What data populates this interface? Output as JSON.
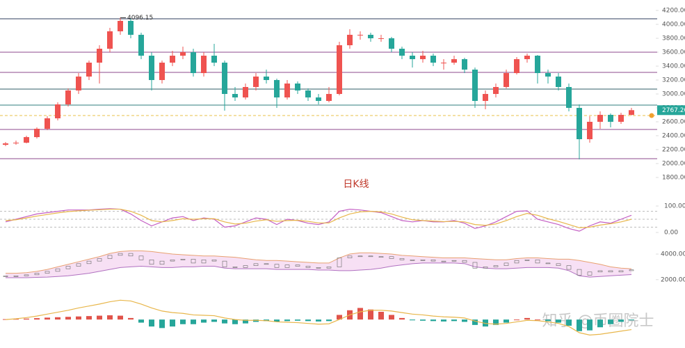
{
  "chart_data": [
    {
      "type": "candlestick",
      "title": "日K线",
      "up_color": "#ef5350",
      "down_color": "#26a69a",
      "open": [
        2270,
        2290,
        2300,
        2380,
        2500,
        2650,
        2850,
        3050,
        3250,
        3450,
        3650,
        3900,
        4050,
        3850,
        3550,
        3200,
        3450,
        3550,
        3600,
        3300,
        3550,
        3450,
        3000,
        2950,
        3100,
        3250,
        3200,
        2950,
        3150,
        3050,
        2950,
        2900,
        3000,
        3700,
        3850,
        3850,
        3800,
        3800,
        3650,
        3550,
        3500,
        3550,
        3450,
        3450,
        3500,
        3350,
        2900,
        3000,
        3100,
        3300,
        3500,
        3550,
        3300,
        3250,
        3100,
        2800,
        2350,
        2600,
        2700,
        2600,
        2700
      ],
      "high": [
        2310,
        2330,
        2400,
        2520,
        2680,
        2880,
        3080,
        3300,
        3480,
        3700,
        3950,
        4096.15,
        4080,
        3880,
        3600,
        3480,
        3620,
        3680,
        3650,
        3600,
        3720,
        3480,
        3100,
        3150,
        3300,
        3350,
        3220,
        3200,
        3180,
        3080,
        3000,
        3100,
        3750,
        3930,
        3900,
        3880,
        3850,
        3820,
        3680,
        3600,
        3620,
        3580,
        3500,
        3550,
        3520,
        3380,
        3050,
        3150,
        3350,
        3530,
        3580,
        3560,
        3350,
        3300,
        3150,
        2850,
        2680,
        2750,
        2720,
        2730,
        2800
      ],
      "low": [
        2250,
        2270,
        2290,
        2360,
        2480,
        2620,
        2820,
        3000,
        3200,
        3150,
        3600,
        3850,
        3800,
        3500,
        3050,
        3150,
        3400,
        3500,
        3250,
        3250,
        3400,
        2760,
        2900,
        2920,
        3050,
        3150,
        2800,
        2920,
        3000,
        2900,
        2850,
        2880,
        2980,
        3650,
        3780,
        3750,
        3750,
        3600,
        3500,
        3380,
        3450,
        3400,
        3350,
        3420,
        3300,
        2800,
        2780,
        2950,
        3080,
        3280,
        3450,
        3150,
        3150,
        3050,
        2750,
        2060,
        2300,
        2500,
        2520,
        2570,
        2690
      ],
      "close": [
        2290,
        2300,
        2380,
        2500,
        2650,
        2850,
        3050,
        3250,
        3450,
        3650,
        3900,
        4050,
        3850,
        3550,
        3200,
        3450,
        3550,
        3600,
        3300,
        3550,
        3450,
        3000,
        2950,
        3100,
        3250,
        3200,
        2950,
        3150,
        3050,
        2950,
        2900,
        3000,
        3700,
        3850,
        3850,
        3800,
        3800,
        3650,
        3550,
        3500,
        3550,
        3450,
        3450,
        3500,
        3350,
        2900,
        3000,
        3100,
        3300,
        3500,
        3550,
        3300,
        3250,
        3100,
        2800,
        2350,
        2600,
        2700,
        2600,
        2700,
        2767.2
      ],
      "last_price_label": "2767.20",
      "ylim": [
        1550,
        4350
      ],
      "yticks": [
        {
          "value": 4200,
          "label": "4200.00"
        },
        {
          "value": 4000,
          "label": "4000.00"
        },
        {
          "value": 3800,
          "label": "3800.00"
        },
        {
          "value": 3600,
          "label": "3600.00"
        },
        {
          "value": 3400,
          "label": "3400.00"
        },
        {
          "value": 3200,
          "label": "3200.00"
        },
        {
          "value": 3000,
          "label": "3000.00"
        },
        {
          "value": 2800,
          "label": "2800.00"
        },
        {
          "value": 2600,
          "label": "2600.00"
        },
        {
          "value": 2400,
          "label": "2400.00"
        },
        {
          "value": 2200,
          "label": "2200.00"
        },
        {
          "value": 2000,
          "label": "2000.00"
        },
        {
          "value": 1800,
          "label": "1800.00"
        }
      ],
      "levels": [
        4080,
        3600,
        3310,
        3070,
        2840,
        2490,
        2070
      ],
      "level_colors": [
        "#2f3e5c",
        "#8e4a8e",
        "#8e4a8e",
        "#2f5e66",
        "#2f7e7e",
        "#8e4a8e",
        "#8e4a8e"
      ],
      "dashed_level": 2690,
      "dashed_color": "#e8c14a"
    },
    {
      "type": "line",
      "ylim": [
        -20,
        120
      ],
      "yticks": [
        {
          "value": 100,
          "label": "100.00"
        },
        {
          "value": 0,
          "label": "0.00"
        }
      ],
      "guides": [
        80,
        50,
        20
      ],
      "series": [
        {
          "color": "#c45ec4",
          "values": [
            40,
            50,
            60,
            70,
            75,
            80,
            85,
            85,
            85,
            88,
            90,
            88,
            70,
            45,
            25,
            40,
            55,
            60,
            45,
            55,
            50,
            20,
            25,
            40,
            55,
            50,
            30,
            50,
            45,
            35,
            30,
            40,
            80,
            88,
            85,
            80,
            75,
            60,
            45,
            40,
            45,
            40,
            40,
            45,
            35,
            15,
            25,
            40,
            60,
            80,
            82,
            50,
            40,
            30,
            15,
            5,
            25,
            40,
            35,
            50,
            65
          ]
        },
        {
          "color": "#e8b64a",
          "values": [
            45,
            48,
            55,
            62,
            68,
            74,
            79,
            82,
            84,
            86,
            88,
            88,
            80,
            65,
            45,
            40,
            45,
            52,
            50,
            52,
            52,
            40,
            32,
            35,
            43,
            48,
            42,
            45,
            46,
            42,
            36,
            36,
            55,
            70,
            78,
            80,
            78,
            70,
            58,
            48,
            45,
            43,
            41,
            42,
            40,
            30,
            27,
            32,
            45,
            60,
            72,
            65,
            52,
            42,
            30,
            18,
            20,
            28,
            33,
            40,
            50
          ]
        }
      ]
    },
    {
      "type": "band",
      "ylim": [
        1500,
        4600
      ],
      "yticks": [
        {
          "value": 4000,
          "label": "4000.00"
        },
        {
          "value": 2000,
          "label": "2000.00"
        }
      ],
      "band_color": "#f3d3f0",
      "upper": [
        2500,
        2500,
        2550,
        2650,
        2800,
        3000,
        3200,
        3400,
        3600,
        3800,
        4050,
        4200,
        4250,
        4250,
        4200,
        4100,
        4000,
        3950,
        3900,
        3850,
        3850,
        3800,
        3750,
        3650,
        3550,
        3500,
        3500,
        3450,
        3400,
        3350,
        3300,
        3300,
        3700,
        4000,
        4100,
        4100,
        4050,
        4000,
        3900,
        3850,
        3800,
        3750,
        3700,
        3700,
        3700,
        3650,
        3600,
        3550,
        3550,
        3650,
        3700,
        3700,
        3650,
        3600,
        3600,
        3500,
        3350,
        3200,
        3000,
        2900,
        2850
      ],
      "lower": [
        2150,
        2150,
        2150,
        2180,
        2200,
        2250,
        2300,
        2400,
        2500,
        2650,
        2800,
        2950,
        3000,
        3050,
        3000,
        2950,
        2950,
        3000,
        3000,
        3050,
        3050,
        2900,
        2850,
        2850,
        2850,
        2850,
        2800,
        2800,
        2800,
        2800,
        2750,
        2750,
        2700,
        2700,
        2750,
        2800,
        2900,
        3050,
        3150,
        3250,
        3300,
        3300,
        3300,
        3300,
        3250,
        3000,
        2900,
        2850,
        2850,
        2900,
        2950,
        2950,
        2950,
        2900,
        2700,
        2300,
        2200,
        2250,
        2300,
        2350,
        2400
      ]
    },
    {
      "type": "macd",
      "ylim": [
        -260,
        280
      ],
      "up_color": "#e0534a",
      "down_color": "#26a69a",
      "line_color": "#e8b64a",
      "hist": [
        5,
        8,
        12,
        18,
        25,
        30,
        35,
        40,
        45,
        50,
        55,
        50,
        20,
        -40,
        -90,
        -110,
        -90,
        -60,
        -60,
        -40,
        -30,
        -50,
        -60,
        -50,
        -30,
        -20,
        -30,
        -20,
        -15,
        -20,
        -25,
        -20,
        60,
        120,
        150,
        130,
        100,
        60,
        20,
        -10,
        -15,
        -20,
        -25,
        -20,
        -30,
        -70,
        -90,
        -70,
        -40,
        0,
        20,
        0,
        -20,
        -40,
        -80,
        -150,
        -140,
        -100,
        -60,
        -30,
        -10
      ],
      "dif": [
        0,
        10,
        25,
        45,
        70,
        95,
        120,
        150,
        175,
        200,
        230,
        250,
        240,
        200,
        150,
        110,
        90,
        80,
        60,
        55,
        50,
        20,
        0,
        -10,
        -10,
        -15,
        -30,
        -35,
        -40,
        -50,
        -60,
        -55,
        0,
        60,
        100,
        120,
        120,
        110,
        90,
        70,
        60,
        45,
        35,
        30,
        20,
        -20,
        -50,
        -60,
        -50,
        -30,
        -10,
        -15,
        -30,
        -50,
        -90,
        -170,
        -200,
        -190,
        -170,
        -150,
        -130
      ]
    }
  ],
  "watermark": "知乎 @币圈院士"
}
